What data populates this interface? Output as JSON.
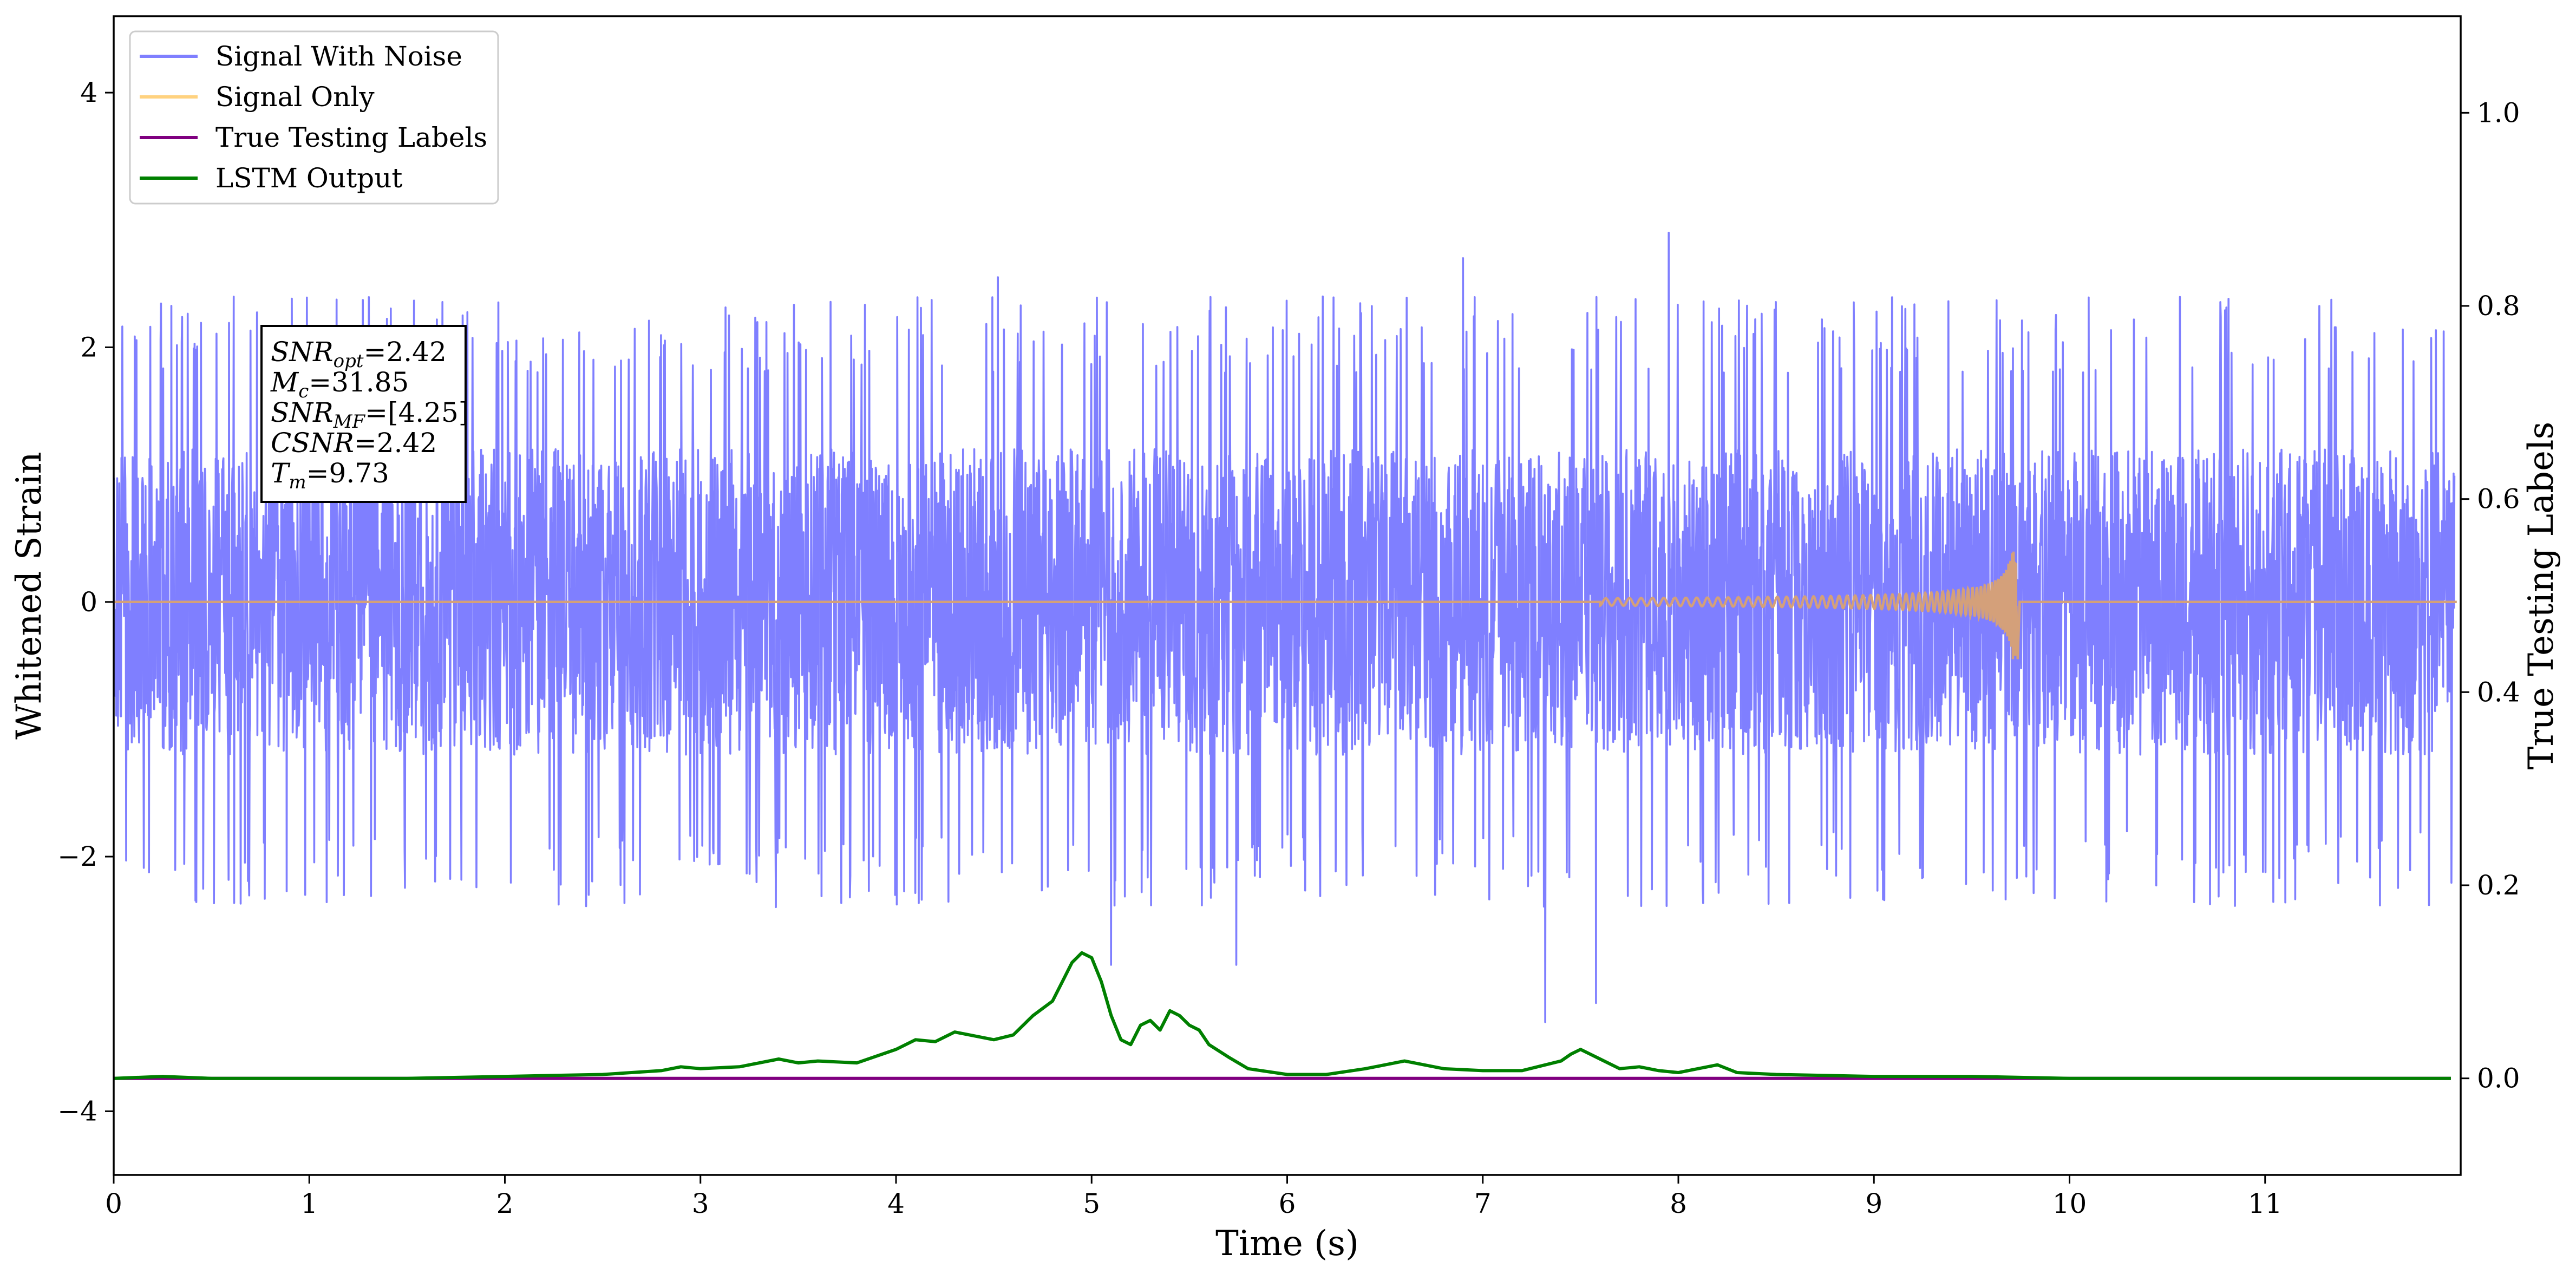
{
  "chart_data": {
    "type": "line",
    "xlabel": "Time (s)",
    "ylabel_left": "Whitened Strain",
    "ylabel_right": "True Testing Labels",
    "xlim": [
      0,
      12
    ],
    "ylim_left": [
      -4.5,
      4.6
    ],
    "ylim_right": [
      -0.1,
      1.1
    ],
    "grid": false,
    "legend_position": "top-left",
    "x_ticks": [
      0,
      1,
      2,
      3,
      4,
      5,
      6,
      7,
      8,
      9,
      10,
      11
    ],
    "x_tick_labels": [
      "0",
      "1",
      "2",
      "3",
      "4",
      "5",
      "6",
      "7",
      "8",
      "9",
      "10",
      "11"
    ],
    "y_left_ticks": [
      4,
      2,
      0,
      -2,
      -4
    ],
    "y_left_tick_labels": [
      "4",
      "2",
      "0",
      "−2",
      "−4"
    ],
    "y_right_ticks": [
      1.0,
      0.8,
      0.6,
      0.4,
      0.2,
      0.0
    ],
    "y_right_tick_labels": [
      "1.0",
      "0.8",
      "0.6",
      "0.4",
      "0.2",
      "0.0"
    ],
    "annotation": {
      "lines": [
        {
          "base": "SNR",
          "sub": "opt",
          "value": "=2.42"
        },
        {
          "base": "M",
          "sub": "c",
          "value": "=31.85"
        },
        {
          "base": "SNR",
          "sub": "MF",
          "value": "=[4.25]"
        },
        {
          "base": "CSNR",
          "sub": "",
          "value": "=2.42"
        },
        {
          "base": "T",
          "sub": "m",
          "value": "=9.73"
        }
      ]
    },
    "series": [
      {
        "name": "Signal With Noise",
        "axis": "left",
        "color": "#7f7fff",
        "style": "noise",
        "typical_amplitude": 1.2,
        "max_value": 2.9,
        "min_value": -3.3
      },
      {
        "name": "Signal Only",
        "axis": "left",
        "color": "#ffd27f",
        "style": "chirp",
        "merger_time": 9.73,
        "peak_amplitude": 0.45
      },
      {
        "name": "True Testing Labels",
        "axis": "right",
        "color": "#800080",
        "style": "line",
        "x": [
          0,
          11.95
        ],
        "y": [
          0,
          0
        ]
      },
      {
        "name": "LSTM Output",
        "axis": "right",
        "color": "#008000",
        "style": "line",
        "x": [
          0,
          0.25,
          0.5,
          1.0,
          1.5,
          2.0,
          2.5,
          2.8,
          2.9,
          3.0,
          3.2,
          3.4,
          3.5,
          3.6,
          3.8,
          4.0,
          4.1,
          4.2,
          4.3,
          4.4,
          4.5,
          4.6,
          4.7,
          4.8,
          4.85,
          4.9,
          4.95,
          5.0,
          5.05,
          5.1,
          5.15,
          5.2,
          5.25,
          5.3,
          5.35,
          5.4,
          5.45,
          5.5,
          5.55,
          5.6,
          5.7,
          5.8,
          6.0,
          6.2,
          6.4,
          6.6,
          6.8,
          7.0,
          7.2,
          7.4,
          7.45,
          7.5,
          7.55,
          7.6,
          7.7,
          7.8,
          7.9,
          8.0,
          8.1,
          8.2,
          8.3,
          8.5,
          9.0,
          9.5,
          10.0,
          10.5,
          11.0,
          11.95
        ],
        "y": [
          0,
          0.002,
          0,
          0,
          0,
          0.002,
          0.004,
          0.008,
          0.012,
          0.01,
          0.012,
          0.02,
          0.016,
          0.018,
          0.016,
          0.03,
          0.04,
          0.038,
          0.048,
          0.044,
          0.04,
          0.045,
          0.065,
          0.08,
          0.1,
          0.12,
          0.13,
          0.125,
          0.1,
          0.065,
          0.04,
          0.035,
          0.055,
          0.06,
          0.05,
          0.07,
          0.065,
          0.055,
          0.05,
          0.035,
          0.022,
          0.01,
          0.004,
          0.004,
          0.01,
          0.018,
          0.01,
          0.008,
          0.008,
          0.018,
          0.025,
          0.03,
          0.025,
          0.02,
          0.01,
          0.012,
          0.008,
          0.006,
          0.01,
          0.014,
          0.006,
          0.004,
          0.002,
          0.002,
          0,
          0,
          0,
          0
        ]
      }
    ]
  }
}
